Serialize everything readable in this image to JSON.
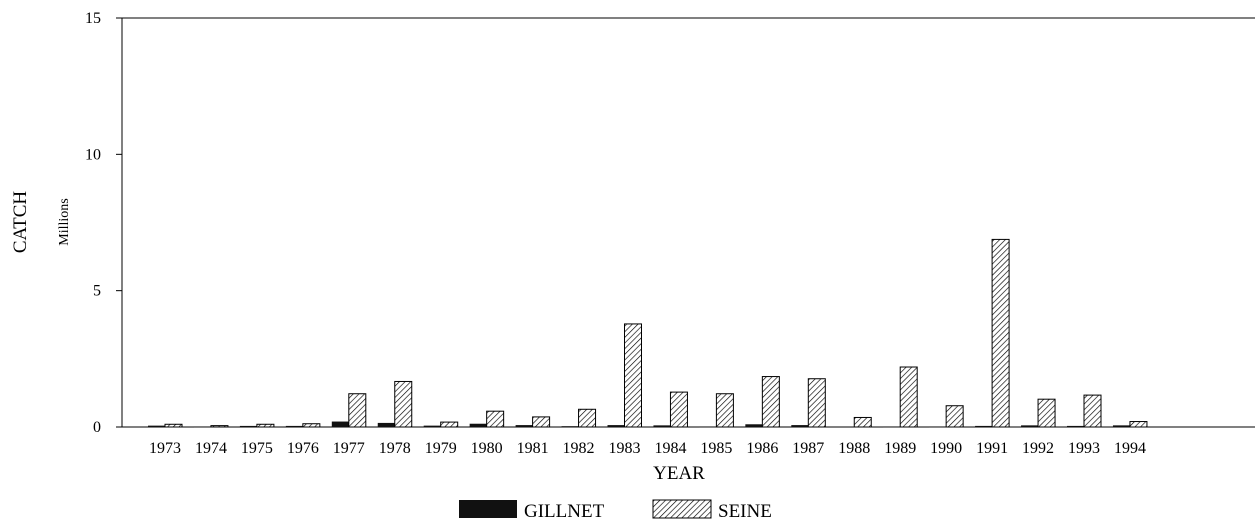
{
  "chart_data": {
    "type": "bar",
    "title": "",
    "xlabel": "YEAR",
    "ylabel": "CATCH",
    "yunit": "Millions",
    "ylim": [
      0,
      15
    ],
    "yticks": [
      "0",
      "5",
      "10",
      "15"
    ],
    "categories": [
      "1973",
      "1974",
      "1975",
      "1976",
      "1977",
      "1978",
      "1979",
      "1980",
      "1981",
      "1982",
      "1983",
      "1984",
      "1985",
      "1986",
      "1987",
      "1988",
      "1989",
      "1990",
      "1991",
      "1992",
      "1993",
      "1994"
    ],
    "series": [
      {
        "name": "GILLNET",
        "values": [
          0.05,
          0.02,
          0.04,
          0.04,
          0.2,
          0.15,
          0.05,
          0.12,
          0.07,
          0.03,
          0.07,
          0.06,
          0.02,
          0.1,
          0.07,
          0.0,
          0.02,
          0.02,
          0.04,
          0.06,
          0.04,
          0.06
        ]
      },
      {
        "name": "SEINE",
        "values": [
          0.1,
          0.05,
          0.1,
          0.12,
          1.22,
          1.67,
          0.18,
          0.58,
          0.37,
          0.65,
          3.78,
          1.28,
          1.22,
          1.85,
          1.77,
          0.35,
          2.2,
          0.78,
          6.88,
          1.02,
          1.17,
          0.2
        ]
      }
    ],
    "legend": {
      "position": "bottom-center"
    },
    "grid": false
  }
}
